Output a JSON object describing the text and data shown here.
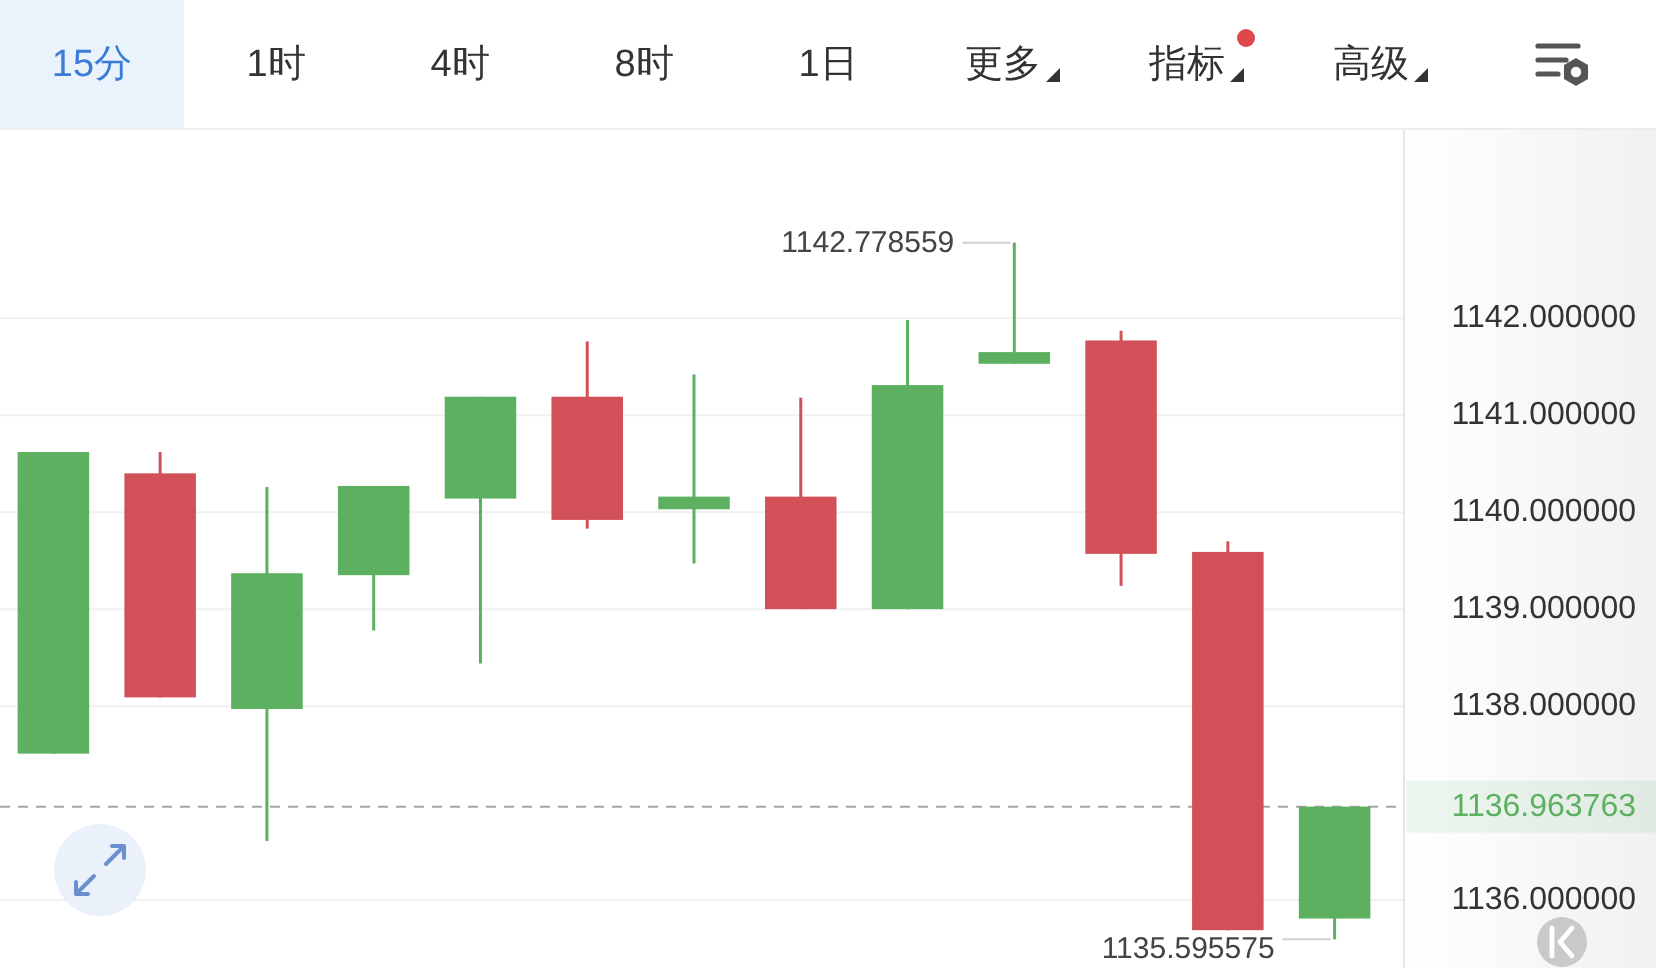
{
  "chart_data": {
    "type": "candlestick",
    "categories": [
      null,
      null,
      null,
      null,
      null,
      null,
      null,
      null,
      null,
      null,
      null,
      null,
      null
    ],
    "ohlc": [
      [
        1137.51,
        1140.62,
        1137.51,
        1140.62
      ],
      [
        1140.4,
        1140.62,
        1138.09,
        1138.09
      ],
      [
        1137.97,
        1140.26,
        1136.61,
        1139.37
      ],
      [
        1139.35,
        1140.27,
        1138.78,
        1140.27
      ],
      [
        1140.14,
        1141.19,
        1138.44,
        1141.19
      ],
      [
        1141.19,
        1141.76,
        1139.83,
        1139.92
      ],
      [
        1140.03,
        1141.42,
        1139.47,
        1140.16
      ],
      [
        1140.16,
        1141.18,
        1139.0,
        1139.0
      ],
      [
        1139.0,
        1141.98,
        1139.0,
        1141.31
      ],
      [
        1141.53,
        1142.778559,
        1141.53,
        1141.65
      ],
      [
        1141.77,
        1141.87,
        1139.24,
        1139.57
      ],
      [
        1139.59,
        1139.7,
        1135.69,
        1135.69
      ],
      [
        1135.81,
        1136.963763,
        1135.595575,
        1136.963763
      ]
    ],
    "colors": [
      "#5cb060",
      "#d25058",
      "#5cb060",
      "#5cb060",
      "#5cb060",
      "#d25058",
      "#5cb060",
      "#d25058",
      "#5cb060",
      "#5cb060",
      "#d25058",
      "#d25058",
      "#5cb060"
    ],
    "ylim": [
      1135.3,
      1143.94
    ],
    "yticks": [
      {
        "value": 1136,
        "label": "1136.000000"
      },
      {
        "value": 1138,
        "label": "1138.000000"
      },
      {
        "value": 1139,
        "label": "1139.000000"
      },
      {
        "value": 1140,
        "label": "1140.000000"
      },
      {
        "value": 1141,
        "label": "1141.000000"
      },
      {
        "value": 1142,
        "label": "1142.000000"
      }
    ],
    "grid": "y",
    "tick_labels": "y",
    "ref_lines": [
      {
        "axis": "y",
        "value": 1136.963763,
        "label": "1136.963763",
        "color": "#a6a6a6",
        "line_style": "dashed"
      }
    ],
    "annotations": [
      "15分",
      "1时",
      "4时",
      "8时",
      "1日",
      "更多",
      "指标",
      "高级",
      "1142.778559",
      "1135.595575"
    ]
  }
}
